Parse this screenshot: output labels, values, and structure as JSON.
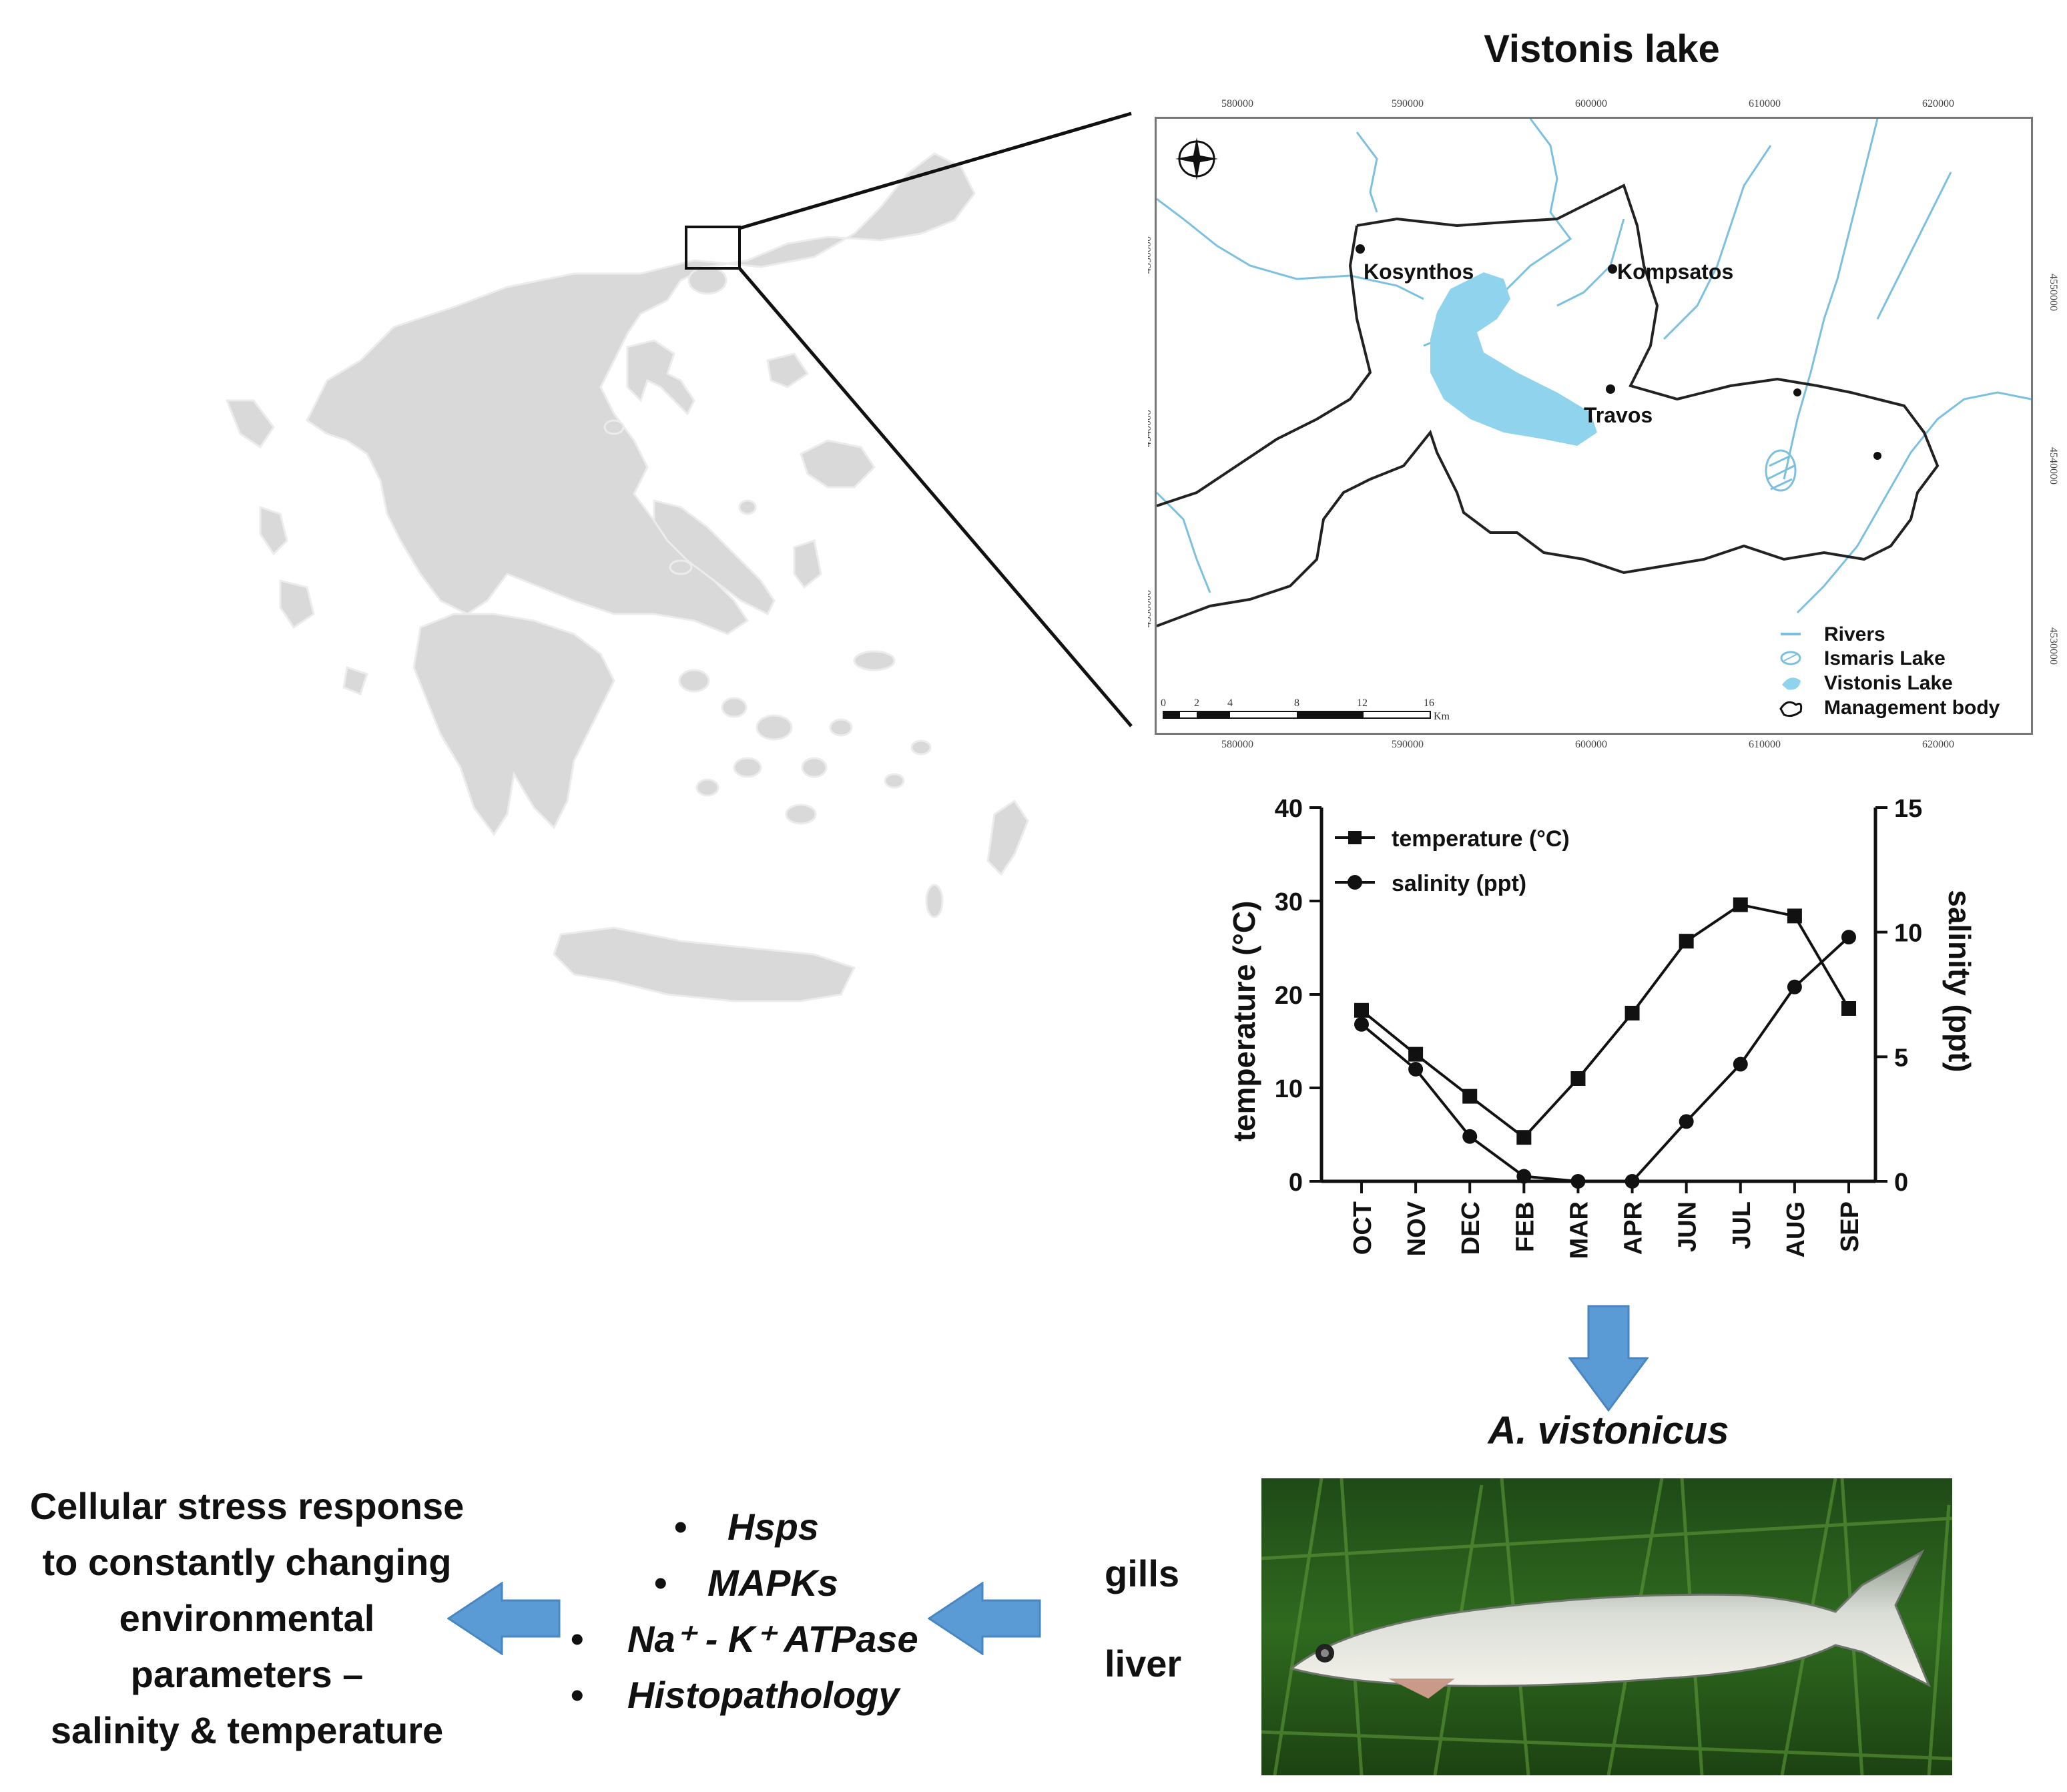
{
  "map": {
    "title": "Vistonis lake",
    "x_ticks": [
      "580000",
      "590000",
      "600000",
      "610000",
      "620000"
    ],
    "y_ticks": [
      "4550000",
      "4540000",
      "4530000"
    ],
    "places": [
      "Kosynthos",
      "Kompsatos",
      "Travos"
    ],
    "legend": [
      "Rivers",
      "Ismaris Lake",
      "Vistonis Lake",
      "Management body"
    ],
    "scale_ticks": [
      "0",
      "2",
      "4",
      "8",
      "12",
      "16"
    ],
    "scale_unit": "Km",
    "colors": {
      "lake": "#8fd4ec",
      "river": "#7cc0e0",
      "boundary": "#222222",
      "land": "#d9d9d9"
    }
  },
  "chart_data": {
    "type": "line",
    "categories": [
      "OCT",
      "NOV",
      "DEC",
      "FEB",
      "MAR",
      "APR",
      "JUN",
      "JUL",
      "AUG",
      "SEP"
    ],
    "series": [
      {
        "name": "temperature (°C)",
        "marker": "square",
        "axis": "left",
        "values": [
          18.3,
          13.6,
          9.1,
          4.7,
          11.0,
          18.0,
          25.7,
          29.6,
          28.4,
          18.5
        ]
      },
      {
        "name": "salinity (ppt)",
        "marker": "circle",
        "axis": "right",
        "values": [
          6.3,
          4.5,
          1.8,
          0.2,
          0.0,
          0.0,
          2.4,
          4.7,
          7.8,
          9.8
        ]
      }
    ],
    "ylabel_left": "temperature  (°C)",
    "ylabel_right": "salinity (ppt)",
    "ylim_left": [
      0,
      40
    ],
    "ylim_right": [
      0,
      15
    ],
    "yticks_left": [
      0,
      10,
      20,
      30,
      40
    ],
    "yticks_right": [
      0,
      5,
      10,
      15
    ],
    "legend_position": "top-left",
    "grid": false
  },
  "fish": {
    "species": "A. vistonicus",
    "tissues": [
      "gills",
      "liver"
    ]
  },
  "analyses": {
    "items": [
      "Hsps",
      "MAPKs",
      "Na⁺ - K⁺ ATPase",
      "Histopathology"
    ],
    "bullet": "•"
  },
  "conclusion": {
    "lines": [
      "Cellular stress response",
      "to constantly changing",
      "environmental",
      "parameters –",
      "salinity & temperature"
    ]
  },
  "colors": {
    "arrow": "#5b9bd5",
    "arrow_edge": "#4a86c0",
    "land": "#d9d9d9"
  }
}
